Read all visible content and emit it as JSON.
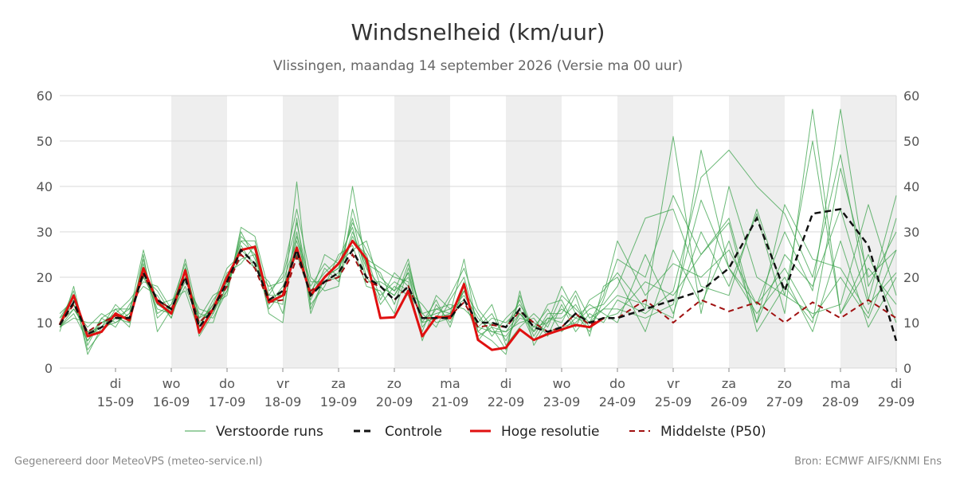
{
  "chart_data": {
    "type": "line",
    "title": "Windsnelheid (km/uur)",
    "subtitle": "Vlissingen, maandag 14 september 2026 (Versie ma 00 uur)",
    "ylim": [
      0,
      60
    ],
    "yticks": [
      0,
      10,
      20,
      30,
      40,
      50,
      60
    ],
    "x_days": [
      14,
      14.25,
      14.5,
      14.75,
      15,
      15.25,
      15.5,
      15.75,
      16,
      16.25,
      16.5,
      16.75,
      17,
      17.25,
      17.5,
      17.75,
      18,
      18.25,
      18.5,
      18.75,
      19,
      19.25,
      19.5,
      19.75,
      20,
      20.25,
      20.5,
      20.75,
      21,
      21.25,
      21.5,
      21.75,
      22,
      22.25,
      22.5,
      22.75,
      23,
      23.25,
      23.5,
      23.75,
      24,
      24.5,
      25,
      25.5,
      26,
      26.5,
      27,
      27.5,
      28,
      28.5,
      29
    ],
    "xticks": [
      {
        "weekday": "di",
        "date": "15-09"
      },
      {
        "weekday": "wo",
        "date": "16-09"
      },
      {
        "weekday": "do",
        "date": "17-09"
      },
      {
        "weekday": "vr",
        "date": "18-09"
      },
      {
        "weekday": "za",
        "date": "19-09"
      },
      {
        "weekday": "zo",
        "date": "20-09"
      },
      {
        "weekday": "ma",
        "date": "21-09"
      },
      {
        "weekday": "di",
        "date": "22-09"
      },
      {
        "weekday": "wo",
        "date": "23-09"
      },
      {
        "weekday": "do",
        "date": "24-09"
      },
      {
        "weekday": "vr",
        "date": "25-09"
      },
      {
        "weekday": "za",
        "date": "26-09"
      },
      {
        "weekday": "zo",
        "date": "27-09"
      },
      {
        "weekday": "ma",
        "date": "28-09"
      },
      {
        "weekday": "di",
        "date": "29-09"
      }
    ],
    "shaded_days": [
      "16-09",
      "18-09",
      "20-09",
      "22-09",
      "24-09",
      "26-09",
      "28-09"
    ],
    "grid": "horizontal",
    "legend_position": "bottom",
    "colors": {
      "ensemble": "#3aa14a",
      "control": "#111111",
      "high_res": "#e01010",
      "median": "#a01010",
      "shade": "#eeeeee",
      "grid": "#d8d8d8"
    },
    "series": [
      {
        "name": "Controle",
        "style": "dashed",
        "values": [
          9.5,
          14.5,
          7.5,
          9,
          11,
          11,
          21,
          15,
          13,
          20,
          9,
          13,
          19,
          26,
          23,
          15,
          17,
          26,
          16,
          19,
          21,
          26,
          20,
          18,
          15,
          18,
          11,
          11,
          11,
          15,
          10,
          10,
          9,
          13,
          9,
          8,
          9,
          12,
          10,
          11,
          11,
          13,
          15,
          17,
          22,
          33,
          17,
          34,
          35,
          27,
          6
        ]
      },
      {
        "name": "Hoge resolutie",
        "style": "solid",
        "values": [
          9.5,
          16,
          7,
          8,
          12,
          10.5,
          22,
          14.5,
          12,
          21.5,
          7.8,
          13,
          20,
          26,
          26.7,
          14.5,
          16,
          26.5,
          16,
          20,
          23,
          28,
          24,
          11,
          11.2,
          17,
          7,
          11.3,
          11,
          18.5,
          6.2,
          4,
          4.5,
          8.5,
          6.2,
          7.5,
          8.5,
          9.5,
          9,
          11
        ]
      },
      {
        "name": "Middelste (P50)",
        "style": "dashed",
        "values": [
          9.5,
          14,
          8,
          10,
          11.5,
          11,
          20.5,
          15,
          13,
          20,
          10,
          13,
          18,
          25,
          22,
          14.5,
          15,
          24.5,
          17,
          19,
          20,
          25,
          19,
          18,
          15,
          18,
          11,
          11,
          11.5,
          14.5,
          9,
          9.5,
          9,
          12.5,
          10,
          8,
          9,
          12,
          9.5,
          11,
          11,
          15,
          10,
          15,
          12.5,
          14.5,
          10,
          14.5,
          11,
          15,
          11
        ]
      },
      {
        "name": "Verstoorde runs",
        "style": "thin",
        "members": [
          [
            10,
            17,
            3,
            9,
            12,
            9,
            25,
            8,
            13,
            22,
            7,
            12,
            18,
            29,
            26,
            12,
            10,
            33,
            12,
            20,
            22,
            32,
            26,
            20,
            17,
            24,
            10,
            11,
            12,
            24,
            8,
            6,
            3,
            17,
            5,
            10,
            18,
            12,
            8,
            15,
            24,
            20,
            38,
            25,
            32,
            8,
            18,
            10,
            44,
            20,
            26
          ],
          [
            9,
            12,
            6,
            10,
            11,
            13,
            20,
            17,
            12,
            18,
            10,
            14,
            22,
            25,
            22,
            18,
            19,
            28,
            18,
            23,
            20,
            30,
            22,
            14,
            18,
            16,
            8,
            16,
            13,
            15,
            7,
            9,
            8,
            10,
            11,
            7,
            14,
            8,
            12,
            10,
            15,
            12,
            17,
            42,
            48,
            40,
            34,
            20,
            47,
            15,
            38
          ],
          [
            11,
            14,
            8,
            8,
            13,
            10,
            23,
            12,
            14,
            23,
            9,
            15,
            19,
            28,
            28,
            15,
            15,
            30,
            14,
            18,
            25,
            27,
            18,
            17,
            12,
            22,
            12,
            9,
            15,
            20,
            9,
            12,
            6,
            12,
            8,
            11,
            10,
            16,
            7,
            18,
            20,
            8,
            26,
            14,
            28,
            10,
            36,
            24,
            22,
            12,
            33
          ],
          [
            8,
            18,
            5,
            11,
            9,
            14,
            18,
            16,
            11,
            20,
            12,
            11,
            17,
            30,
            24,
            16,
            21,
            35,
            20,
            17,
            18,
            35,
            24,
            22,
            20,
            19,
            6,
            14,
            10,
            17,
            12,
            7,
            11,
            14,
            9,
            13,
            8,
            11,
            14,
            12,
            10,
            25,
            12,
            30,
            18,
            34,
            12,
            57,
            12,
            25,
            10
          ],
          [
            10,
            13,
            9,
            12,
            10,
            12,
            26,
            14,
            15,
            17,
            8,
            13,
            21,
            23,
            27,
            14,
            18,
            25,
            16,
            25,
            23,
            26,
            28,
            18,
            16,
            21,
            9,
            13,
            14,
            13,
            10,
            14,
            5,
            9,
            12,
            9,
            16,
            13,
            10,
            16,
            28,
            16,
            23,
            20,
            26,
            14,
            30,
            17,
            57,
            18,
            30
          ],
          [
            12,
            15,
            7,
            9,
            14,
            11,
            21,
            13,
            12,
            24,
            11,
            16,
            18,
            27,
            22,
            19,
            12,
            29,
            19,
            19,
            21,
            33,
            20,
            16,
            19,
            17,
            14,
            10,
            11,
            19,
            6,
            10,
            9,
            15,
            7,
            12,
            12,
            17,
            11,
            13,
            13,
            11,
            14,
            37,
            22,
            12,
            20,
            8,
            28,
            9,
            20
          ],
          [
            9,
            11,
            10,
            10,
            12,
            15,
            19,
            18,
            13,
            19,
            13,
            12,
            20,
            24,
            25,
            13,
            17,
            27,
            15,
            22,
            19,
            29,
            23,
            21,
            14,
            23,
            11,
            12,
            13,
            16,
            11,
            8,
            7,
            11,
            10,
            8,
            9,
            10,
            13,
            14,
            18,
            33,
            35,
            18,
            16,
            35,
            16,
            50,
            12,
            22,
            14
          ],
          [
            11,
            16,
            4,
            8,
            11,
            10,
            24,
            11,
            14,
            21,
            9,
            14,
            16,
            31,
            29,
            17,
            20,
            32,
            17,
            21,
            24,
            31,
            19,
            19,
            17,
            20,
            10,
            15,
            9,
            18,
            8,
            11,
            10,
            13,
            6,
            11,
            11,
            14,
            9,
            11,
            12,
            19,
            16,
            25,
            33,
            10,
            25,
            18,
            35,
            14,
            21
          ],
          [
            10,
            14,
            6,
            11,
            13,
            13,
            22,
            15,
            11,
            22,
            10,
            10,
            19,
            26,
            23,
            15,
            14,
            41,
            13,
            20,
            22,
            28,
            25,
            15,
            21,
            18,
            7,
            11,
            16,
            22,
            13,
            9,
            4,
            16,
            8,
            14,
            15,
            9,
            15,
            17,
            21,
            13,
            51,
            12,
            40,
            20,
            16,
            12,
            14,
            36,
            16
          ],
          [
            9,
            13,
            8,
            9,
            10,
            12,
            20,
            14,
            12,
            20,
            11,
            13,
            17,
            28,
            25,
            16,
            16,
            26,
            16,
            19,
            20,
            40,
            22,
            18,
            16,
            21,
            12,
            13,
            12,
            17,
            9,
            8,
            8,
            12,
            9,
            10,
            13,
            11,
            10,
            13,
            16,
            14,
            11,
            48,
            22,
            14,
            22,
            11,
            20,
            11,
            26
          ]
        ]
      }
    ]
  },
  "legend": {
    "items": [
      {
        "label": "Verstoorde runs"
      },
      {
        "label": "Controle"
      },
      {
        "label": "Hoge resolutie"
      },
      {
        "label": "Middelste (P50)"
      }
    ]
  },
  "footer": {
    "left": "Gegenereerd door MeteoVPS (meteo-service.nl)",
    "right": "Bron: ECMWF AIFS/KNMI Ens"
  }
}
